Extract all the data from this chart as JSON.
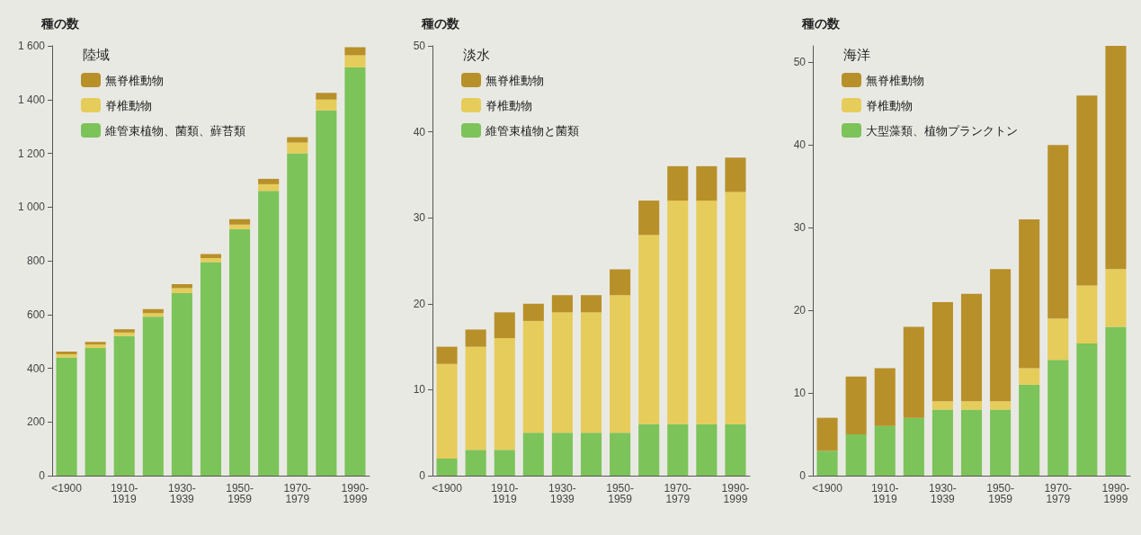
{
  "chart_data": [
    {
      "type": "bar",
      "stacked": true,
      "legend": "top left",
      "ylabel": "種の数",
      "legend_title": "陸域",
      "categories": [
        "<1900",
        null,
        "1910-1919",
        null,
        "1930-1939",
        null,
        "1950-1959",
        null,
        "1970-1979",
        null,
        "1990-1999"
      ],
      "ylim": [
        0,
        1600
      ],
      "yticks": [
        0,
        200,
        400,
        600,
        800,
        {
          "value": 1000,
          "label": "1 000"
        },
        {
          "value": 1200,
          "label": "1 200"
        },
        {
          "value": 1400,
          "label": "1 400"
        },
        {
          "value": 1600,
          "label": "1 600"
        }
      ],
      "series": [
        {
          "name": "維管束植物、菌類、蘚苔類",
          "color": "#7cc35a",
          "values": [
            440,
            475,
            520,
            592,
            680,
            795,
            918,
            1060,
            1200,
            1360,
            1520
          ]
        },
        {
          "name": "脊椎動物",
          "color": "#e6cc5a",
          "values": [
            12,
            13,
            13,
            13,
            18,
            15,
            17,
            25,
            40,
            40,
            45
          ]
        },
        {
          "name": "無脊椎動物",
          "color": "#b8902a",
          "values": [
            10,
            10,
            12,
            15,
            15,
            15,
            20,
            20,
            20,
            25,
            30
          ]
        }
      ]
    },
    {
      "type": "bar",
      "stacked": true,
      "legend": "top left",
      "ylabel": "種の数",
      "legend_title": "淡水",
      "categories": [
        "<1900",
        null,
        "1910-1919",
        null,
        "1930-1939",
        null,
        "1950-1959",
        null,
        "1970-1979",
        null,
        "1990-1999"
      ],
      "ylim": [
        0,
        50
      ],
      "yticks": [
        0,
        10,
        20,
        30,
        40,
        50
      ],
      "series": [
        {
          "name": "維管束植物と菌類",
          "color": "#7cc35a",
          "values": [
            2,
            3,
            3,
            5,
            5,
            5,
            5,
            6,
            6,
            6,
            6
          ]
        },
        {
          "name": "脊椎動物",
          "color": "#e6cc5a",
          "values": [
            11,
            12,
            13,
            13,
            14,
            14,
            16,
            22,
            26,
            26,
            27
          ]
        },
        {
          "name": "無脊椎動物",
          "color": "#b8902a",
          "values": [
            2,
            2,
            3,
            2,
            2,
            2,
            3,
            4,
            4,
            4,
            4
          ]
        }
      ]
    },
    {
      "type": "bar",
      "stacked": true,
      "legend": "top left",
      "ylabel": "種の数",
      "legend_title": "海洋",
      "categories": [
        "<1900",
        null,
        "1910-1919",
        null,
        "1930-1939",
        null,
        "1950-1959",
        null,
        "1970-1979",
        null,
        "1990-1999"
      ],
      "ylim": [
        0,
        52
      ],
      "yticks": [
        0,
        10,
        20,
        30,
        40,
        50
      ],
      "series": [
        {
          "name": "大型藻類、植物プランクトン",
          "color": "#7cc35a",
          "values": [
            3,
            5,
            6,
            7,
            8,
            8,
            8,
            11,
            14,
            16,
            18
          ]
        },
        {
          "name": "脊椎動物",
          "color": "#e6cc5a",
          "values": [
            0,
            0,
            0,
            0,
            1,
            1,
            1,
            2,
            5,
            7,
            7
          ]
        },
        {
          "name": "無脊椎動物",
          "color": "#b8902a",
          "values": [
            4,
            7,
            7,
            11,
            12,
            13,
            16,
            18,
            21,
            23,
            27
          ]
        }
      ]
    }
  ]
}
